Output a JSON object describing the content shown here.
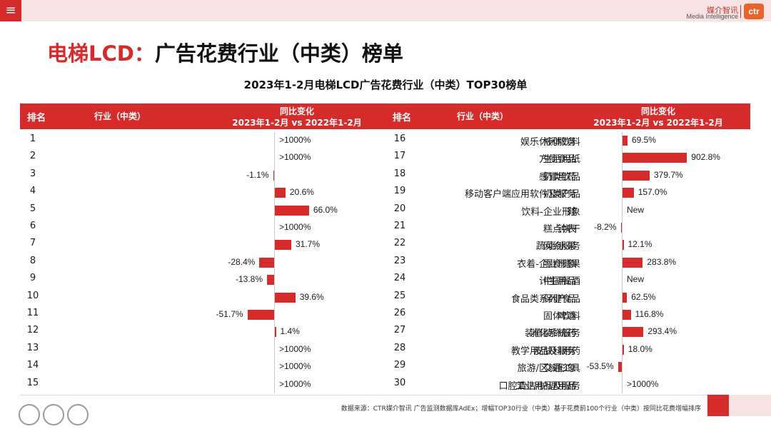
{
  "header": {
    "menu_icon": "≡",
    "logo_cn": "媒介智讯",
    "logo_en": "Media Intelligence",
    "logo_mark": "ctr"
  },
  "page_title_red": "电梯LCD：",
  "page_title_black": "广告花费行业（中类）榜单",
  "table_header": {
    "rank": "排名",
    "industry": "行业（中类）",
    "change_line1": "同比变化",
    "change_line2": "2023年1-2月 vs 2022年1-2月"
  },
  "footer": {
    "source": "数据来源：CTR媒介智讯 广告监测数据库AdEx；增幅TOP30行业（中类）基于花费前100个行业（中类）按同比花费增幅排序"
  },
  "colors": {
    "accent": "#d62b2b",
    "pink": "#f7e3e3"
  },
  "chart_data": {
    "type": "bar",
    "title": "2023年1-2月电梯LCD广告花费行业（中类）TOP30榜单",
    "unit": "%",
    "scales": {
      "left_units_per_px": 1.38,
      "right_units_per_px": 10.0
    },
    "left": [
      {
        "rank": "1",
        "industry": "液体饮料",
        "label": ">1000%",
        "value": null
      },
      {
        "rank": "2",
        "industry": "生活用纸",
        "label": ">1000%",
        "value": null
      },
      {
        "rank": "3",
        "industry": "奶类饮品",
        "label": "-1.1%",
        "value": -1.1
      },
      {
        "rank": "4",
        "industry": "奶类产品",
        "label": "20.6%",
        "value": 20.6
      },
      {
        "rank": "5",
        "industry": "饮料-企业形象",
        "label": "66.0%",
        "value": 66.0
      },
      {
        "rank": "6",
        "industry": "糕点饼干",
        "label": ">1000%",
        "value": null
      },
      {
        "rank": "7",
        "industry": "网络服务",
        "label": "31.7%",
        "value": 31.7
      },
      {
        "rank": "8",
        "industry": "零食糖果",
        "label": "-28.4%",
        "value": -28.4
      },
      {
        "rank": "9",
        "industry": "中国餐酒",
        "label": "-13.8%",
        "value": -13.8
      },
      {
        "rank": "10",
        "industry": "保健食品",
        "label": "39.6%",
        "value": 39.6
      },
      {
        "rank": "11",
        "industry": "固体饮料",
        "label": "-51.7%",
        "value": -51.7
      },
      {
        "rank": "12",
        "industry": "装修装饰服务",
        "label": "1.4%",
        "value": 1.4
      },
      {
        "rank": "13",
        "industry": "皮肤科用药",
        "label": ">1000%",
        "value": null
      },
      {
        "rank": "14",
        "industry": "交通工具",
        "label": ">1000%",
        "value": null
      },
      {
        "rank": "15",
        "industry": "工业用品及服务",
        "label": ">1000%",
        "value": null
      }
    ],
    "right": [
      {
        "rank": "16",
        "industry": "娱乐休闲服务",
        "label": "69.5%",
        "value": 69.5
      },
      {
        "rank": "17",
        "industry": "方便食品",
        "label": "902.8%",
        "value": 902.8
      },
      {
        "rank": "18",
        "industry": "感冒用药",
        "label": "379.7%",
        "value": 379.7
      },
      {
        "rank": "19",
        "industry": "移动客户端应用软件及服务",
        "label": "157.0%",
        "value": 157.0
      },
      {
        "rank": "20",
        "industry": "鞋",
        "label": "New",
        "value": null
      },
      {
        "rank": "21",
        "industry": "钟表",
        "label": "-8.2%",
        "value": -8.2
      },
      {
        "rank": "22",
        "industry": "蔬菜/水果",
        "label": "12.1%",
        "value": 12.1
      },
      {
        "rank": "23",
        "industry": "衣着-企业形象",
        "label": "283.8%",
        "value": 283.8
      },
      {
        "rank": "24",
        "industry": "计生用品",
        "label": "New",
        "value": null
      },
      {
        "rank": "25",
        "industry": "食品类系列产品",
        "label": "62.5%",
        "value": 62.5
      },
      {
        "rank": "26",
        "industry": "啤酒",
        "label": "116.8%",
        "value": 116.8
      },
      {
        "rank": "27",
        "industry": "消化系统药",
        "label": "293.4%",
        "value": 293.4
      },
      {
        "rank": "28",
        "industry": "教学用品及服务",
        "label": "18.0%",
        "value": 18.0
      },
      {
        "rank": "29",
        "industry": "旅游/区域形象",
        "label": "-53.5%",
        "value": -53.5
      },
      {
        "rank": "30",
        "industry": "口腔清洁/护理用品",
        "label": ">1000%",
        "value": null
      }
    ]
  }
}
